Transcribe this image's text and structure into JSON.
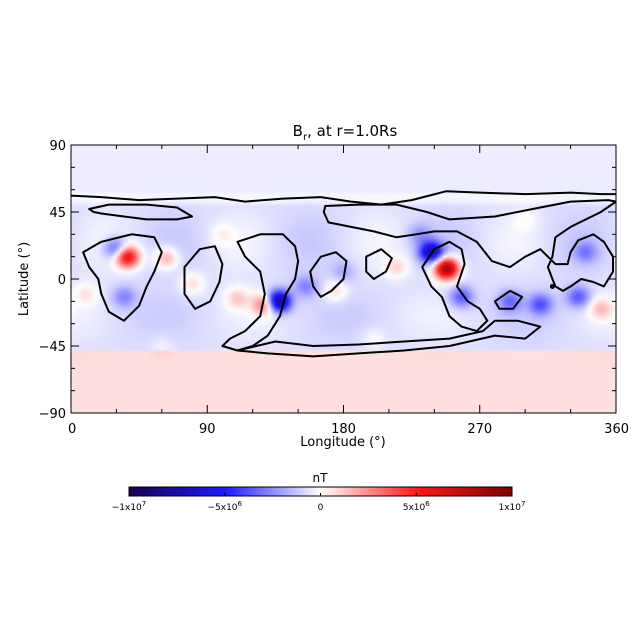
{
  "chart_data": {
    "type": "heatmap",
    "title": "B, at r=1.0Rs",
    "title_subscript": "r",
    "xlabel": "Longitude (°)",
    "ylabel": "Latitude (°)",
    "xlim": [
      0,
      360
    ],
    "ylim": [
      -90,
      90
    ],
    "xticks": [
      0,
      90,
      180,
      270,
      360
    ],
    "yticks": [
      -90,
      -45,
      0,
      45,
      90
    ],
    "colorbar": {
      "label": "nT",
      "range": [
        -10000000,
        10000000
      ],
      "ticks": [
        {
          "value": -10000000,
          "mant": "−1x10",
          "exp": "7"
        },
        {
          "value": -5000000,
          "mant": "−5x10",
          "exp": "6"
        },
        {
          "value": 0,
          "mant": "0",
          "exp": ""
        },
        {
          "value": 5000000,
          "mant": "5x10",
          "exp": "6"
        },
        {
          "value": 10000000,
          "mant": "1x10",
          "exp": "7"
        }
      ],
      "colors": [
        "#1a0050",
        "#1a1aff",
        "#ffffff",
        "#ff1a1a",
        "#7a0000"
      ]
    },
    "features": [
      {
        "lon": 37,
        "lat": 15,
        "value": 7000000
      },
      {
        "lon": 30,
        "lat": 20,
        "value": -3500000
      },
      {
        "lon": 63,
        "lat": 14,
        "value": 2500000
      },
      {
        "lon": 35,
        "lat": -12,
        "value": -2000000
      },
      {
        "lon": 80,
        "lat": -3,
        "value": 1500000
      },
      {
        "lon": 128,
        "lat": -17,
        "value": 4000000
      },
      {
        "lon": 137,
        "lat": -15,
        "value": -8000000
      },
      {
        "lon": 110,
        "lat": -13,
        "value": 1800000
      },
      {
        "lon": 155,
        "lat": -5,
        "value": -2000000
      },
      {
        "lon": 175,
        "lat": -8,
        "value": 1500000
      },
      {
        "lon": 215,
        "lat": 8,
        "value": 1500000
      },
      {
        "lon": 238,
        "lat": 18,
        "value": -6500000
      },
      {
        "lon": 248,
        "lat": 7,
        "value": 9500000
      },
      {
        "lon": 258,
        "lat": -12,
        "value": -3000000
      },
      {
        "lon": 230,
        "lat": 30,
        "value": -1500000
      },
      {
        "lon": 180,
        "lat": 5,
        "value": -1200000
      },
      {
        "lon": 290,
        "lat": -15,
        "value": -2500000
      },
      {
        "lon": 310,
        "lat": -17,
        "value": -3000000
      },
      {
        "lon": 335,
        "lat": -12,
        "value": -3000000
      },
      {
        "lon": 340,
        "lat": 18,
        "value": -2000000
      },
      {
        "lon": 350,
        "lat": -20,
        "value": 2000000
      },
      {
        "lon": 10,
        "lat": -10,
        "value": 1200000
      },
      {
        "lon": 100,
        "lat": 30,
        "value": 800000
      },
      {
        "lon": 200,
        "lat": -40,
        "value": 700000
      },
      {
        "lon": 300,
        "lat": 40,
        "value": 600000
      },
      {
        "lon": 60,
        "lat": -45,
        "value": 500000
      }
    ],
    "background": {
      "north_cap": -400000,
      "equatorial_band": -700000,
      "south_cap": 700000
    },
    "polarity_inversion_lines": [
      {
        "closed": false,
        "points": [
          [
            0,
            56
          ],
          [
            20,
            55
          ],
          [
            45,
            53
          ],
          [
            70,
            54
          ],
          [
            95,
            55
          ],
          [
            115,
            52
          ],
          [
            140,
            54
          ],
          [
            165,
            55
          ],
          [
            185,
            52
          ],
          [
            205,
            50
          ],
          [
            225,
            53
          ],
          [
            248,
            59
          ],
          [
            270,
            58
          ],
          [
            300,
            57
          ],
          [
            330,
            58
          ],
          [
            350,
            57
          ],
          [
            360,
            57
          ]
        ]
      },
      {
        "closed": true,
        "points": [
          [
            12,
            47
          ],
          [
            25,
            50
          ],
          [
            50,
            50
          ],
          [
            70,
            48
          ],
          [
            80,
            42
          ],
          [
            70,
            40
          ],
          [
            50,
            40
          ],
          [
            35,
            42
          ],
          [
            20,
            44
          ],
          [
            15,
            45
          ]
        ]
      },
      {
        "closed": true,
        "points": [
          [
            168,
            49
          ],
          [
            190,
            50
          ],
          [
            215,
            50
          ],
          [
            235,
            45
          ],
          [
            250,
            40
          ],
          [
            280,
            42
          ],
          [
            310,
            48
          ],
          [
            330,
            52
          ],
          [
            355,
            53
          ],
          [
            360,
            52
          ],
          [
            350,
            45
          ],
          [
            330,
            35
          ],
          [
            320,
            28
          ],
          [
            318,
            15
          ],
          [
            315,
            8
          ],
          [
            318,
            0
          ],
          [
            320,
            -5
          ],
          [
            325,
            -8
          ],
          [
            330,
            -5
          ],
          [
            337,
            0
          ],
          [
            345,
            -2
          ],
          [
            352,
            -5
          ],
          [
            358,
            5
          ],
          [
            358,
            15
          ],
          [
            352,
            25
          ],
          [
            345,
            30
          ],
          [
            335,
            26
          ],
          [
            330,
            18
          ],
          [
            328,
            10
          ],
          [
            320,
            10
          ],
          [
            310,
            20
          ],
          [
            300,
            15
          ],
          [
            290,
            8
          ],
          [
            278,
            12
          ],
          [
            268,
            25
          ],
          [
            255,
            32
          ],
          [
            240,
            32
          ],
          [
            228,
            30
          ],
          [
            215,
            28
          ],
          [
            200,
            32
          ],
          [
            185,
            35
          ],
          [
            170,
            38
          ],
          [
            167,
            45
          ]
        ]
      },
      {
        "closed": true,
        "points": [
          [
            8,
            18
          ],
          [
            20,
            25
          ],
          [
            40,
            30
          ],
          [
            55,
            28
          ],
          [
            60,
            18
          ],
          [
            55,
            5
          ],
          [
            50,
            -5
          ],
          [
            45,
            -18
          ],
          [
            35,
            -28
          ],
          [
            25,
            -22
          ],
          [
            20,
            -10
          ],
          [
            18,
            0
          ],
          [
            12,
            8
          ]
        ]
      },
      {
        "closed": true,
        "points": [
          [
            75,
            8
          ],
          [
            85,
            20
          ],
          [
            95,
            22
          ],
          [
            100,
            10
          ],
          [
            98,
            -2
          ],
          [
            92,
            -15
          ],
          [
            82,
            -20
          ],
          [
            75,
            -10
          ]
        ]
      },
      {
        "closed": true,
        "points": [
          [
            110,
            25
          ],
          [
            125,
            30
          ],
          [
            140,
            30
          ],
          [
            148,
            22
          ],
          [
            150,
            12
          ],
          [
            148,
            0
          ],
          [
            142,
            -10
          ],
          [
            138,
            -25
          ],
          [
            130,
            -38
          ],
          [
            120,
            -45
          ],
          [
            110,
            -48
          ],
          [
            100,
            -45
          ],
          [
            105,
            -40
          ],
          [
            115,
            -35
          ],
          [
            125,
            -25
          ],
          [
            128,
            -10
          ],
          [
            125,
            5
          ],
          [
            115,
            15
          ]
        ]
      },
      {
        "closed": true,
        "points": [
          [
            158,
            5
          ],
          [
            165,
            15
          ],
          [
            175,
            18
          ],
          [
            182,
            12
          ],
          [
            180,
            0
          ],
          [
            172,
            -8
          ],
          [
            165,
            -12
          ],
          [
            160,
            -5
          ]
        ]
      },
      {
        "closed": true,
        "points": [
          [
            195,
            15
          ],
          [
            205,
            20
          ],
          [
            212,
            14
          ],
          [
            208,
            5
          ],
          [
            200,
            0
          ],
          [
            195,
            5
          ]
        ]
      },
      {
        "closed": true,
        "points": [
          [
            232,
            8
          ],
          [
            240,
            20
          ],
          [
            250,
            25
          ],
          [
            258,
            20
          ],
          [
            260,
            10
          ],
          [
            255,
            -5
          ],
          [
            262,
            -15
          ],
          [
            270,
            -20
          ],
          [
            275,
            -28
          ],
          [
            268,
            -35
          ],
          [
            258,
            -32
          ],
          [
            250,
            -25
          ],
          [
            245,
            -12
          ],
          [
            238,
            -5
          ]
        ]
      },
      {
        "closed": true,
        "points": [
          [
            280,
            -15
          ],
          [
            290,
            -8
          ],
          [
            298,
            -12
          ],
          [
            292,
            -20
          ],
          [
            283,
            -20
          ]
        ]
      },
      {
        "closed": true,
        "points": [
          [
            110,
            -48
          ],
          [
            130,
            -50
          ],
          [
            160,
            -52
          ],
          [
            190,
            -50
          ],
          [
            220,
            -48
          ],
          [
            250,
            -45
          ],
          [
            280,
            -38
          ],
          [
            300,
            -40
          ],
          [
            310,
            -32
          ],
          [
            295,
            -28
          ],
          [
            280,
            -28
          ],
          [
            272,
            -35
          ],
          [
            250,
            -40
          ],
          [
            220,
            -42
          ],
          [
            190,
            -44
          ],
          [
            160,
            -45
          ],
          [
            135,
            -42
          ]
        ]
      }
    ],
    "dots": [
      {
        "lon": 318,
        "lat": -5
      }
    ]
  }
}
